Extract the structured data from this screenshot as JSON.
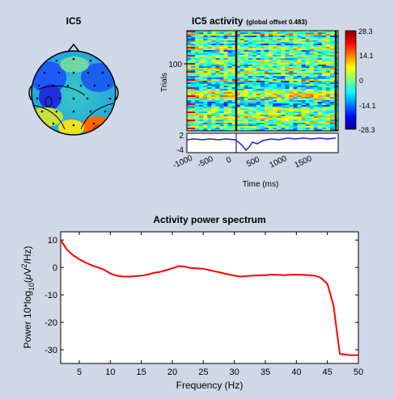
{
  "topo": {
    "title": "IC5"
  },
  "erpimage": {
    "title_main": "IC5 activity",
    "title_note": "(global offset 0.483)",
    "ylabel": "Trials",
    "ytick_trials": "100",
    "colorbar_ticks": [
      "28.3",
      "14.1",
      "0",
      "-14.1",
      "-28.3"
    ],
    "erp_yticks": [
      "2",
      "-4"
    ],
    "xticks": [
      "-1000",
      "-500",
      "0",
      "500",
      "1000",
      "1500"
    ],
    "xlabel": "Time (ms)"
  },
  "chart_data": {
    "type": "line",
    "title": "Activity power spectrum",
    "xlabel": "Frequency (Hz)",
    "ylabel_pre": "Power 10*log",
    "ylabel_sub": "10",
    "ylabel_mid": "(",
    "ylabel_mu": "μ",
    "ylabel_v": "V",
    "ylabel_sup": "2",
    "ylabel_post": "/Hz)",
    "xlim": [
      2,
      50
    ],
    "ylim": [
      -35,
      13
    ],
    "xticks": [
      5,
      10,
      15,
      20,
      25,
      30,
      35,
      40,
      45,
      50
    ],
    "yticks": [
      10,
      0,
      -10,
      -20,
      -30
    ],
    "line_color": "#ff0000",
    "series": [
      {
        "x": [
          2,
          3,
          4,
          5,
          6,
          7,
          8,
          9,
          10,
          11,
          12,
          13,
          14,
          15,
          16,
          17,
          18,
          19,
          20,
          21,
          22,
          23,
          24,
          25,
          26,
          27,
          28,
          29,
          30,
          31,
          32,
          33,
          34,
          35,
          36,
          37,
          38,
          39,
          40,
          41,
          42,
          43,
          44,
          45,
          46,
          47,
          48,
          49,
          50
        ],
        "y": [
          10,
          6.5,
          4.5,
          3,
          1.8,
          0.8,
          0,
          -0.8,
          -2.2,
          -3,
          -3.3,
          -3.3,
          -3.2,
          -3,
          -2.6,
          -2,
          -1.6,
          -1,
          -0.3,
          0.5,
          0.3,
          -0.2,
          -0.3,
          -0.5,
          -1,
          -1.5,
          -2,
          -2.5,
          -3,
          -3.3,
          -3.1,
          -3,
          -2.8,
          -2.8,
          -2.6,
          -2.7,
          -2.8,
          -2.7,
          -2.6,
          -2.7,
          -2.8,
          -3,
          -3.8,
          -6,
          -14,
          -31.5,
          -31.8,
          -32,
          -32
        ]
      }
    ]
  }
}
